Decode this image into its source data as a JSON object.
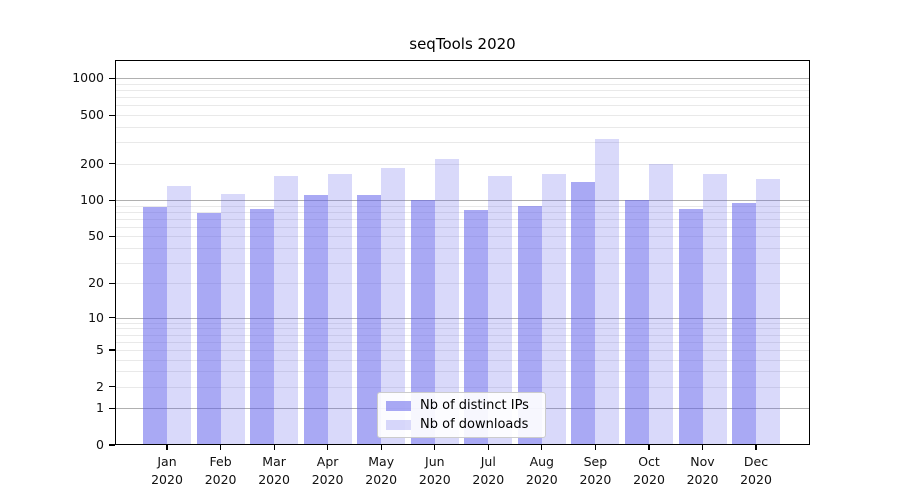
{
  "title": "seqTools 2020",
  "chart_data": {
    "type": "bar",
    "title": "seqTools 2020",
    "y_scale": "log10(value+1)",
    "ylim": [
      0,
      1400
    ],
    "grid": true,
    "legend_position": "inside-bottom-center",
    "y_tick_labels": [
      "0",
      "1",
      "2",
      "5",
      "10",
      "20",
      "50",
      "100",
      "200",
      "500",
      "1000"
    ],
    "y_tick_values": [
      0,
      1,
      2,
      5,
      10,
      20,
      50,
      100,
      200,
      500,
      1000
    ],
    "y_gridlines_major": [
      1,
      10,
      100,
      1000
    ],
    "y_gridlines_minor": [
      2,
      3,
      4,
      5,
      6,
      7,
      8,
      9,
      20,
      30,
      40,
      50,
      60,
      70,
      80,
      90,
      200,
      300,
      400,
      500,
      600,
      700,
      800,
      900
    ],
    "categories": [
      "Jan",
      "Feb",
      "Mar",
      "Apr",
      "May",
      "Jun",
      "Jul",
      "Aug",
      "Sep",
      "Oct",
      "Nov",
      "Dec"
    ],
    "x_tick_second_line": "2020",
    "series": [
      {
        "key": "distinct-ips",
        "name": "Nb of distinct IPs",
        "color": "rgba(92,92,235,0.53)",
        "values": [
          88,
          78,
          85,
          110,
          110,
          100,
          83,
          90,
          141,
          101,
          85,
          95
        ]
      },
      {
        "key": "downloads",
        "name": "Nb of downloads",
        "color": "rgba(92,92,235,0.23)",
        "values": [
          131,
          112,
          159,
          164,
          184,
          217,
          159,
          163,
          317,
          199,
          164,
          149
        ]
      }
    ],
    "colors": {
      "grid_major": "#b0b0b0",
      "grid_minor": "#e9e9e9",
      "spine": "#000000",
      "background": "#ffffff"
    }
  }
}
